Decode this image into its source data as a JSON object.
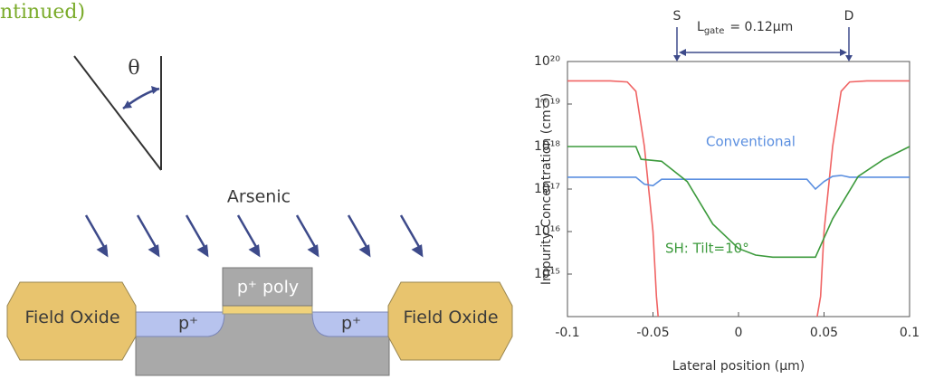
{
  "header": {
    "title": "ntinued)"
  },
  "diagram": {
    "angle": "θ",
    "implant_label": "Arsenic",
    "gate_label": "p⁺ poly",
    "left_oxide": "Field Oxide",
    "right_oxide": "Field Oxide",
    "left_diffusion": "p⁺",
    "right_diffusion": "p⁺"
  },
  "chart_data": {
    "type": "line",
    "y_label": "Impurity Concentration (cm⁻³)",
    "x_label": "Lateral position (μm)",
    "source_label": "S",
    "drain_label": "D",
    "gate_length": {
      "symbol": "L",
      "subscript": "gate",
      "text": "= 0.12μm"
    },
    "log_y": true,
    "xlim": [
      -0.1,
      0.1
    ],
    "xticks": [
      -0.1,
      -0.05,
      0,
      0.05,
      0.1
    ],
    "ylim": [
      100000000000000.0,
      1e+20
    ],
    "yticks": [
      {
        "value": 1000000000000000.0,
        "label": "10¹⁵"
      },
      {
        "value": 1e+16,
        "label": "10¹⁶"
      },
      {
        "value": 1e+17,
        "label": "10¹⁷"
      },
      {
        "value": 1e+18,
        "label": "10¹⁸"
      },
      {
        "value": 1e+19,
        "label": "10¹⁹"
      },
      {
        "value": 1e+20,
        "label": "10²⁰"
      }
    ],
    "series": [
      {
        "color": "#f06464",
        "x": [
          -0.1,
          -0.075,
          -0.065,
          -0.06,
          -0.055,
          -0.05,
          -0.048,
          -0.047,
          0,
          0.046,
          0.048,
          0.05,
          0.055,
          0.06,
          0.065,
          0.075,
          0.1
        ],
        "values": [
          3.5e+19,
          3.5e+19,
          3.3e+19,
          2e+19,
          1e+18,
          1e+16,
          300000000000000.0,
          100000000000000.0,
          null,
          100000000000000.0,
          300000000000000.0,
          1e+16,
          1e+18,
          2e+19,
          3.3e+19,
          3.5e+19,
          3.5e+19
        ]
      },
      {
        "name": "Conventional",
        "color": "#5b8fe0",
        "x": [
          -0.1,
          -0.06,
          -0.055,
          -0.05,
          -0.045,
          0.04,
          0.045,
          0.05,
          0.055,
          0.06,
          0.065,
          0.1
        ],
        "values": [
          1.9e+17,
          1.9e+17,
          1.3e+17,
          1.2e+17,
          1.7e+17,
          1.7e+17,
          1e+17,
          1.5e+17,
          2e+17,
          2.1e+17,
          1.9e+17,
          1.9e+17
        ]
      },
      {
        "name": "SH: Tilt=10°",
        "color": "#3c9a3c",
        "x": [
          -0.1,
          -0.06,
          -0.057,
          -0.045,
          -0.03,
          -0.015,
          0,
          0.01,
          0.02,
          0.045,
          0.055,
          0.07,
          0.085,
          0.1
        ],
        "values": [
          1e+18,
          1e+18,
          5e+17,
          4.5e+17,
          1.5e+17,
          1.5e+16,
          4000000000000000.0,
          2800000000000000.0,
          2500000000000000.0,
          2500000000000000.0,
          2e+16,
          2e+17,
          5e+17,
          1e+18
        ]
      }
    ]
  }
}
